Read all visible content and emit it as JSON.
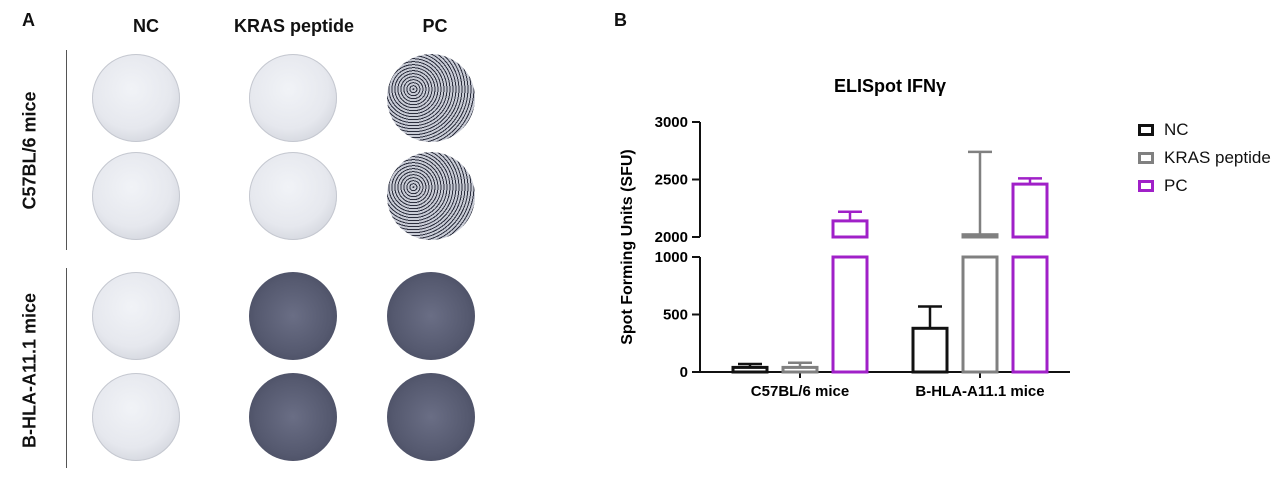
{
  "panel_a": {
    "letter": "A",
    "columns": [
      "NC",
      "KRAS peptide",
      "PC"
    ],
    "rows": [
      "C57BL/6 mice",
      "B-HLA-A11.1 mice"
    ]
  },
  "panel_b": {
    "letter": "B"
  },
  "chart_data": {
    "type": "bar",
    "title": "ELISpot IFNγ",
    "xlabel": "",
    "ylabel": "Spot Forming Units (SFU)",
    "categories": [
      "C57BL/6 mice",
      "B-HLA-A11.1 mice"
    ],
    "y_axis_break": {
      "lower_range": [
        0,
        1000
      ],
      "upper_range": [
        2000,
        3000
      ]
    },
    "yticks": [
      0,
      500,
      1000,
      2000,
      2500,
      3000
    ],
    "grid": false,
    "legend_position": "right",
    "series": [
      {
        "name": "NC",
        "color": "#111111",
        "values": [
          40,
          380
        ],
        "error_upper": [
          70,
          570
        ]
      },
      {
        "name": "KRAS peptide",
        "color": "#808080",
        "values": [
          40,
          2020
        ],
        "error_upper": [
          80,
          2740
        ]
      },
      {
        "name": "PC",
        "color": "#a020c8",
        "values": [
          2140,
          2460
        ],
        "error_upper": [
          2220,
          2510
        ]
      }
    ]
  }
}
